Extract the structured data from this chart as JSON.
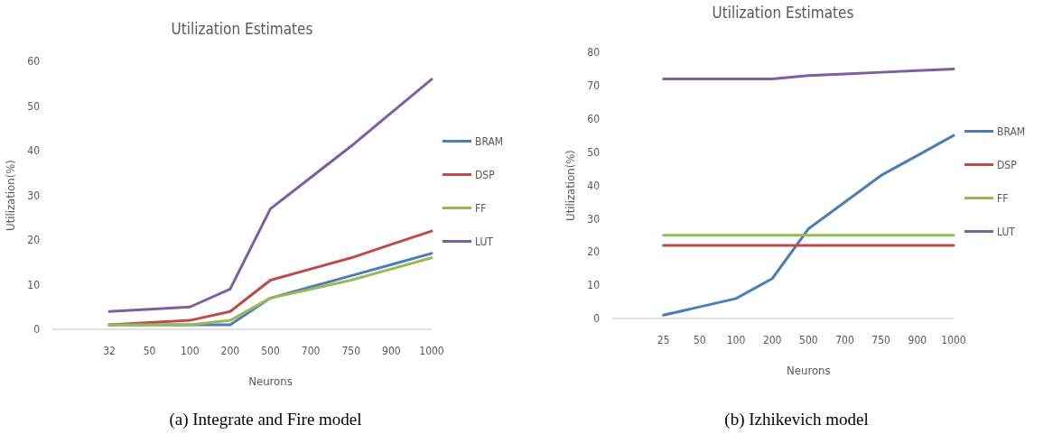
{
  "chart_data": [
    {
      "type": "line",
      "title": "Utilization Estimates",
      "xlabel": "Neurons",
      "ylabel": "Utilization(%)",
      "categories": [
        "32",
        "50",
        "100",
        "200",
        "500",
        "700",
        "750",
        "900",
        "1000"
      ],
      "ylim": [
        0,
        60
      ],
      "yticks": [
        0,
        10,
        20,
        30,
        40,
        50,
        60
      ],
      "legend": "right",
      "grid": false,
      "annotations": [
        "(a) Integrate and Fire model"
      ],
      "series": [
        {
          "name": "BRAM",
          "color": "#4a7ebb",
          "values": [
            1,
            1,
            1,
            1,
            7,
            9.5,
            12,
            14.5,
            17
          ]
        },
        {
          "name": "DSP",
          "color": "#be4b48",
          "values": [
            1,
            1.5,
            2,
            4,
            11,
            13.5,
            16,
            19,
            22
          ]
        },
        {
          "name": "FF",
          "color": "#98b954",
          "values": [
            1,
            1,
            1,
            2,
            7,
            9,
            11,
            13.5,
            16
          ]
        },
        {
          "name": "LUT",
          "color": "#7d5fa0",
          "values": [
            4,
            4.5,
            5,
            9,
            27,
            34,
            41,
            48.5,
            56
          ]
        }
      ]
    },
    {
      "type": "line",
      "title": "Utilization Estimates",
      "xlabel": "Neurons",
      "ylabel": "Utilization(%)",
      "categories": [
        "25",
        "50",
        "100",
        "200",
        "500",
        "700",
        "750",
        "900",
        "1000"
      ],
      "ylim": [
        0,
        80
      ],
      "yticks": [
        0,
        10,
        20,
        30,
        40,
        50,
        60,
        70,
        80
      ],
      "legend": "right",
      "grid": false,
      "annotations": [
        "(b) Izhikevich model"
      ],
      "series": [
        {
          "name": "BRAM",
          "color": "#4a7ebb",
          "values": [
            1,
            3.5,
            6,
            12,
            27,
            35,
            43,
            49,
            55
          ]
        },
        {
          "name": "DSP",
          "color": "#be4b48",
          "values": [
            22,
            22,
            22,
            22,
            22,
            22,
            22,
            22,
            22
          ]
        },
        {
          "name": "FF",
          "color": "#98b954",
          "values": [
            25,
            25,
            25,
            25,
            25,
            25,
            25,
            25,
            25
          ]
        },
        {
          "name": "LUT",
          "color": "#7d5fa0",
          "values": [
            72,
            72,
            72,
            72,
            73,
            73.5,
            74,
            74.5,
            75
          ]
        }
      ]
    }
  ]
}
